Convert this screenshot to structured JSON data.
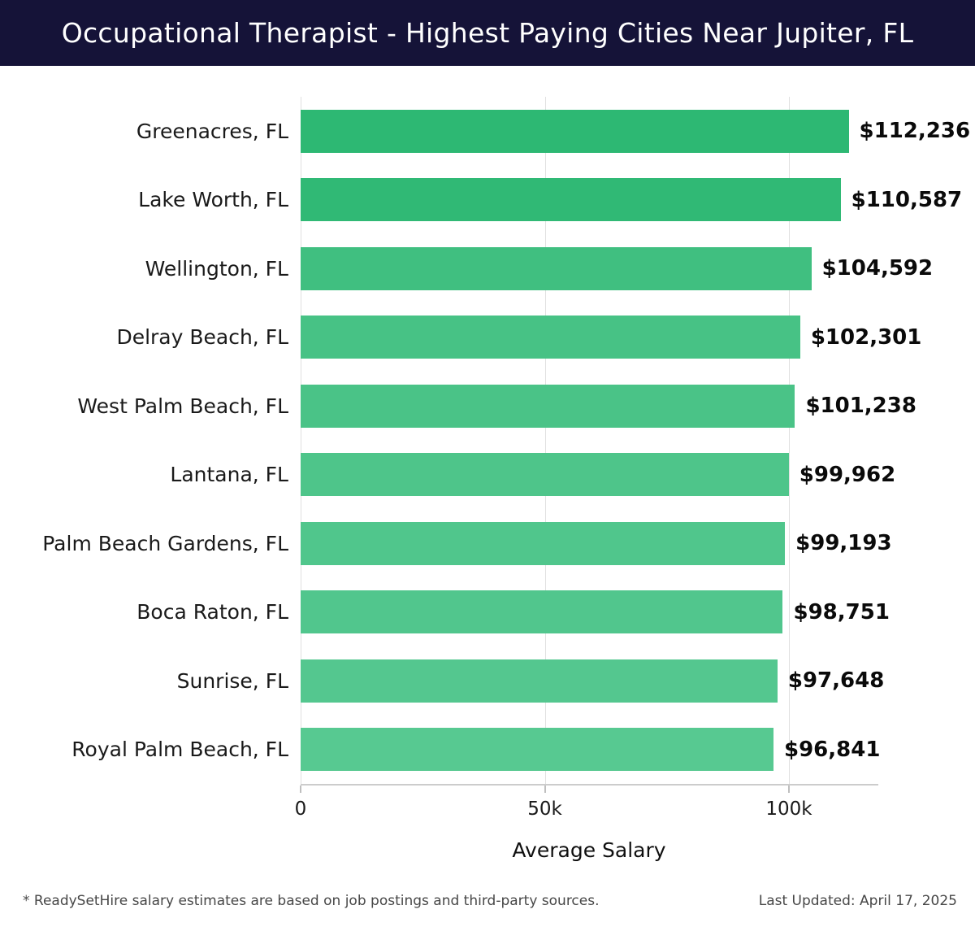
{
  "header": {
    "title": "Occupational Therapist - Highest Paying Cities Near Jupiter, FL",
    "bg_color": "#151338",
    "text_color": "#ffffff"
  },
  "chart_data": {
    "type": "bar",
    "orientation": "horizontal",
    "title": "Occupational Therapist - Highest Paying Cities Near Jupiter, FL",
    "categories": [
      "Greenacres, FL",
      "Lake Worth, FL",
      "Wellington, FL",
      "Delray Beach, FL",
      "West Palm Beach, FL",
      "Lantana, FL",
      "Palm Beach Gardens, FL",
      "Boca Raton, FL",
      "Sunrise, FL",
      "Royal Palm Beach, FL"
    ],
    "values": [
      112236,
      110587,
      104592,
      102301,
      101238,
      99962,
      99193,
      98751,
      97648,
      96841
    ],
    "value_labels": [
      "$112,236",
      "$110,587",
      "$104,592",
      "$102,301",
      "$101,238",
      "$99,962",
      "$99,193",
      "$98,751",
      "$97,648",
      "$96,841"
    ],
    "bar_colors": [
      "#2db873",
      "#30b975",
      "#40bf80",
      "#47c285",
      "#4ac387",
      "#4ec58a",
      "#50c68c",
      "#51c68d",
      "#54c78f",
      "#57c991"
    ],
    "xlabel": "Average Salary",
    "ylabel": "",
    "xlim": [
      0,
      118000
    ],
    "x_ticks": [
      {
        "label": "0",
        "value": 0
      },
      {
        "label": "50k",
        "value": 50000
      },
      {
        "label": "100k",
        "value": 100000
      }
    ],
    "grid": true,
    "legend": false
  },
  "footer": {
    "note": "* ReadySetHire salary estimates are based on job postings and third-party sources.",
    "updated": "Last Updated: April 17, 2025"
  }
}
